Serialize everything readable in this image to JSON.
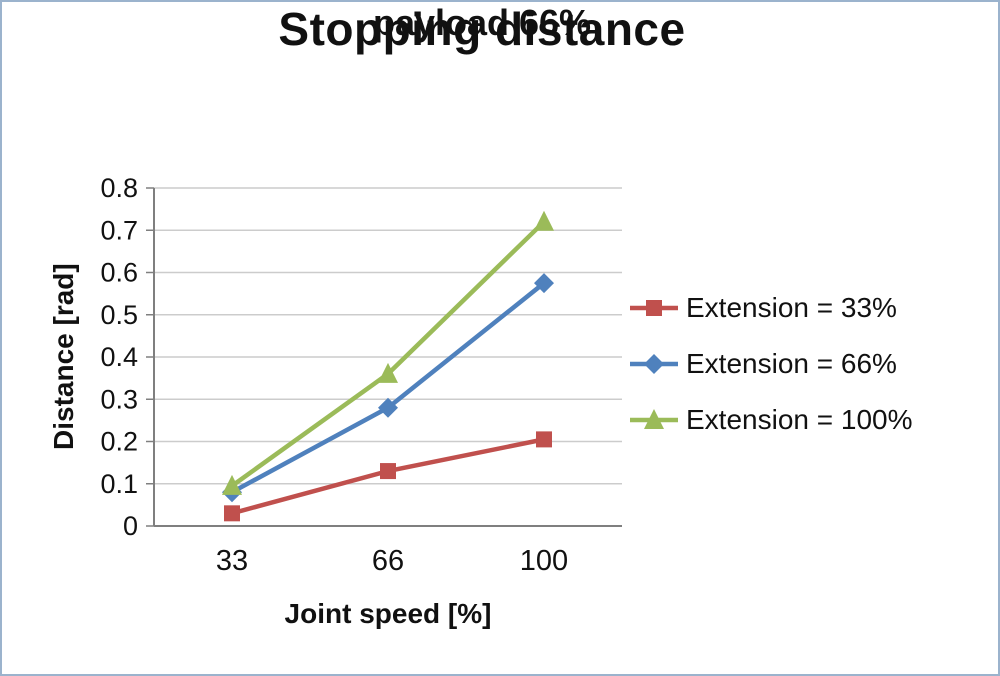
{
  "frame": {
    "background": "#ffffff",
    "border_color": "#9bb3cd"
  },
  "chart_data": {
    "type": "line",
    "title": "Stopping distance",
    "subtitle": "payload 66%",
    "xlabel": "Joint speed [%]",
    "ylabel": "Distance [rad]",
    "categories": [
      "33",
      "66",
      "100"
    ],
    "ylim": [
      0,
      0.8
    ],
    "ytick_step": 0.1,
    "ytick_labels": [
      "0",
      "0.1",
      "0.2",
      "0.3",
      "0.4",
      "0.5",
      "0.6",
      "0.7",
      "0.8"
    ],
    "grid": true,
    "legend_position": "right",
    "axis_color": "#7f7f7f",
    "grid_color": "#cccccc",
    "text_color": "#111111",
    "series": [
      {
        "name": "Extension = 33%",
        "color": "#C0504D",
        "marker": "square",
        "values": [
          0.03,
          0.13,
          0.205
        ]
      },
      {
        "name": "Extension = 66%",
        "color": "#4F81BD",
        "marker": "diamond",
        "values": [
          0.08,
          0.28,
          0.575
        ]
      },
      {
        "name": "Extension = 100%",
        "color": "#9BBB59",
        "marker": "triangle",
        "values": [
          0.095,
          0.36,
          0.72
        ]
      }
    ]
  }
}
